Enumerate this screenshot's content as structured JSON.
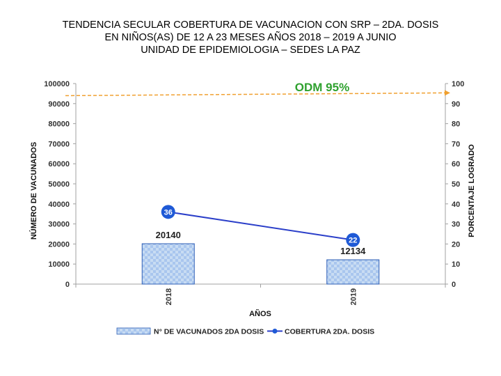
{
  "title_lines": [
    "TENDENCIA SECULAR COBERTURA DE VACUNACION CON SRP – 2DA. DOSIS",
    "EN NIÑOS(AS) DE 12 A 23 MESES AÑOS 2018 – 2019 A JUNIO",
    "UNIDAD DE EPIDEMIOLOGIA – SEDES LA PAZ"
  ],
  "chart_data": {
    "type": "bar",
    "categories": [
      "2018",
      "2019"
    ],
    "xlabel": "AÑOS",
    "ylabel": "NÚMERO DE VACUNADOS",
    "y2label": "PORCENTAJE LOGRADO",
    "ylim": [
      0,
      100000
    ],
    "y2lim": [
      0,
      100
    ],
    "yticks": [
      "0",
      "10000",
      "20000",
      "30000",
      "40000",
      "50000",
      "60000",
      "70000",
      "80000",
      "90000",
      "100000"
    ],
    "y2ticks": [
      "0",
      "10",
      "20",
      "30",
      "40",
      "50",
      "60",
      "70",
      "80",
      "90",
      "100"
    ],
    "series": [
      {
        "name": "N° DE VACUNADOS 2DA DOSIS",
        "type": "bar",
        "axis": "left",
        "values": [
          20140,
          12134
        ],
        "labels": [
          "20140",
          "12134"
        ]
      },
      {
        "name": "COBERTURA 2DA. DOSIS",
        "type": "line",
        "axis": "right",
        "values": [
          36,
          22
        ],
        "labels": [
          "36",
          "22"
        ]
      }
    ],
    "reference_line": {
      "label": "ODM 95%",
      "value": 95,
      "axis": "right"
    },
    "legend_position": "bottom"
  },
  "colors": {
    "bar_fill": "#c8dcf3",
    "bar_pattern": "#8fb1e3",
    "bar_stroke": "#2e5fb5",
    "line": "#2b3fc9",
    "marker": "#1f5ad6",
    "reference": "#f0a030",
    "reference_text": "#2fa12f",
    "axis": "#a0a0a0"
  }
}
